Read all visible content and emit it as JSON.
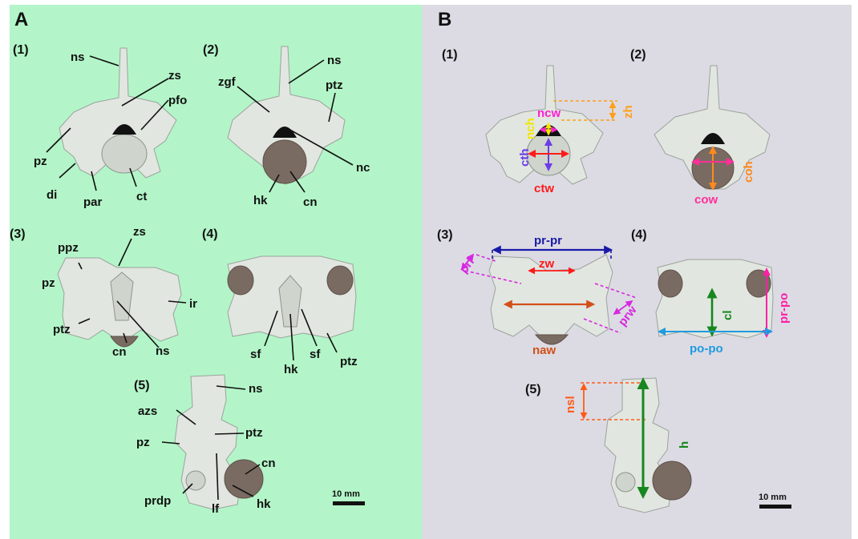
{
  "panels": {
    "a": {
      "letter": "A",
      "bg": "#b3f5c8"
    },
    "b": {
      "letter": "B",
      "bg": "#dcdbe3"
    }
  },
  "views": {
    "a1": "(1)",
    "a2": "(2)",
    "a3": "(3)",
    "a4": "(4)",
    "a5": "(5)",
    "b1": "(1)",
    "b2": "(2)",
    "b3": "(3)",
    "b4": "(4)",
    "b5": "(5)"
  },
  "labels_a": {
    "v1": {
      "ns": "ns",
      "zs": "zs",
      "pfo": "pfo",
      "pz": "pz",
      "di": "di",
      "par": "par",
      "ct": "ct"
    },
    "v2": {
      "zgf": "zgf",
      "ns": "ns",
      "ptz": "ptz",
      "nc": "nc",
      "hk": "hk",
      "cn": "cn"
    },
    "v3": {
      "ppz": "ppz",
      "zs": "zs",
      "pz": "pz",
      "ir": "ir",
      "ptz": "ptz",
      "cn": "cn",
      "ns": "ns"
    },
    "v4": {
      "sf_left": "sf",
      "hk": "hk",
      "sf_right": "sf",
      "ptz": "ptz"
    },
    "v5": {
      "ns": "ns",
      "azs": "azs",
      "ptz": "ptz",
      "pz": "pz",
      "cn": "cn",
      "prdp": "prdp",
      "lf": "lf",
      "hk": "hk"
    }
  },
  "measurements": {
    "ncw": {
      "label": "ncw",
      "color": "#ff1fd2"
    },
    "nch": {
      "label": "nch",
      "color": "#f2e600"
    },
    "zh": {
      "label": "zh",
      "color": "#ff9f1a"
    },
    "cth": {
      "label": "cth",
      "color": "#6a3de8"
    },
    "ctw": {
      "label": "ctw",
      "color": "#ff1a1a"
    },
    "coh": {
      "label": "coh",
      "color": "#ff8a1a"
    },
    "cow": {
      "label": "cow",
      "color": "#ff2f9a"
    },
    "pr_pr": {
      "label": "pr-pr",
      "color": "#1a1aa8"
    },
    "zw": {
      "label": "zw",
      "color": "#ff1a1a"
    },
    "prl": {
      "label": "prl",
      "color": "#d629e0"
    },
    "prw": {
      "label": "prw",
      "color": "#d629e0"
    },
    "naw": {
      "label": "naw",
      "color": "#d2501a"
    },
    "cl": {
      "label": "cl",
      "color": "#17871f"
    },
    "pr_po": {
      "label": "pr-po",
      "color": "#ff1fa8"
    },
    "po_po": {
      "label": "po-po",
      "color": "#1f9ae0"
    },
    "nsl": {
      "label": "nsl",
      "color": "#ff5a1a"
    },
    "h": {
      "label": "h",
      "color": "#17871f"
    }
  },
  "scale_bars": {
    "a": "10 mm",
    "b": "10 mm"
  }
}
